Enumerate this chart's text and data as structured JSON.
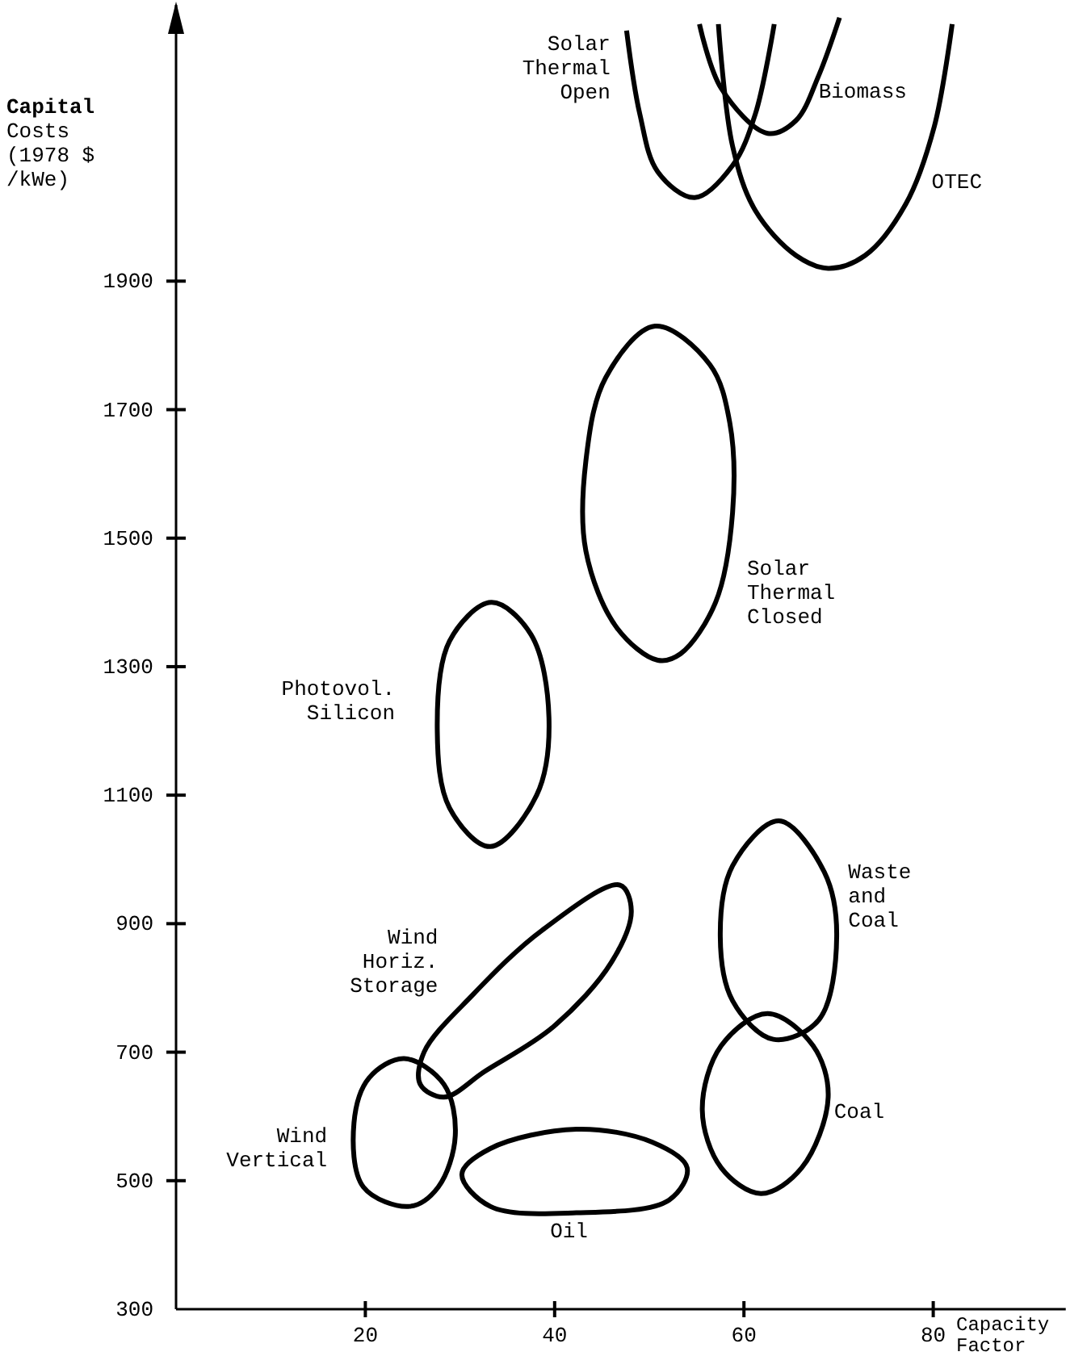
{
  "chart_data": {
    "type": "line",
    "ylabel": "Capital\nCosts\n(1978 $\n/kWe)",
    "xlabel": "Capacity\nFactor",
    "xlim": [
      0,
      94
    ],
    "ylim": [
      300,
      2330
    ],
    "xticks": [
      20,
      40,
      60,
      80
    ],
    "yticks": [
      {
        "value": 300,
        "label": "300"
      },
      500,
      700,
      900,
      1100,
      1300,
      1500,
      1700,
      1900
    ],
    "grid": false,
    "legend": false,
    "series": [
      {
        "name": "Solar\nThermal\nOpen",
        "color": "#000000",
        "x": [
          47.6,
          49.0,
          50.9,
          54.8,
          58.8,
          61.2,
          63.2
        ],
        "values": [
          2290,
          2160,
          2070,
          2030,
          2080,
          2160,
          2300
        ]
      },
      {
        "name": "Biomass",
        "color": "#000000",
        "x": [
          55.3,
          57.6,
          62.5,
          65.5,
          67.9,
          70.1
        ],
        "values": [
          2300,
          2200,
          2130,
          2150,
          2220,
          2310
        ]
      },
      {
        "name": "OTEC",
        "color": "#000000",
        "x": [
          57.3,
          58.8,
          61.2,
          65.5,
          68.9,
          72.8,
          77.1,
          80.1,
          82.0
        ],
        "values": [
          2300,
          2110,
          2010,
          1940,
          1920,
          1940,
          2020,
          2140,
          2300
        ]
      }
    ],
    "annotations": [
      "Solar\nThermal\nClosed",
      "Photovol.\nSilicon",
      "Waste\nand\nCoal",
      "Coal",
      "Wind\nVertical",
      "Wind\nHoriz.\nStorage",
      "Oil"
    ]
  }
}
